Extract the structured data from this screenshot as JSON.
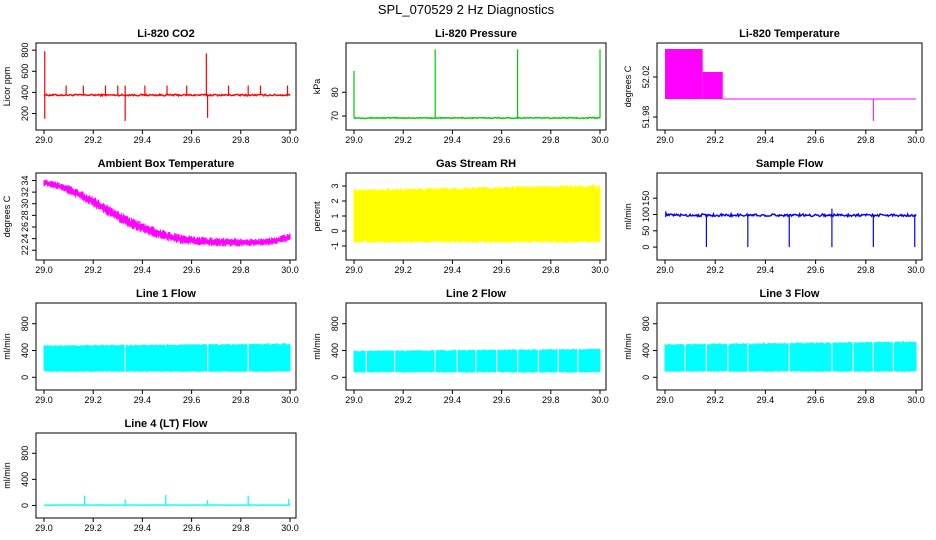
{
  "title": "SPL_070529  2 Hz Diagnostics",
  "chart_data": [
    {
      "type": "line",
      "title": "Li-820 CO2",
      "ylabel": "Licor ppm",
      "color": "#ff0000",
      "xlim": [
        29.0,
        30.0
      ],
      "ylim": [
        120,
        830
      ],
      "xticks": [
        "29.0",
        "29.2",
        "29.4",
        "29.6",
        "29.8",
        "30.0"
      ],
      "xtick_values": [
        29.0,
        29.2,
        29.4,
        29.6,
        29.8,
        30.0
      ],
      "yticks": [
        "200",
        "400",
        "600",
        "800"
      ],
      "ytick_values": [
        200,
        400,
        600,
        800
      ],
      "baseline": 375,
      "noise": 8,
      "spikes": [
        {
          "x": 29.003,
          "y": 790
        },
        {
          "x": 29.003,
          "y": 150
        },
        {
          "x": 29.09,
          "y": 465
        },
        {
          "x": 29.16,
          "y": 465
        },
        {
          "x": 29.25,
          "y": 465
        },
        {
          "x": 29.3,
          "y": 465
        },
        {
          "x": 29.33,
          "y": 465
        },
        {
          "x": 29.33,
          "y": 130
        },
        {
          "x": 29.41,
          "y": 465
        },
        {
          "x": 29.5,
          "y": 465
        },
        {
          "x": 29.58,
          "y": 465
        },
        {
          "x": 29.66,
          "y": 770
        },
        {
          "x": 29.665,
          "y": 160
        },
        {
          "x": 29.75,
          "y": 465
        },
        {
          "x": 29.83,
          "y": 465
        },
        {
          "x": 29.88,
          "y": 465
        },
        {
          "x": 29.99,
          "y": 465
        }
      ]
    },
    {
      "type": "line",
      "title": "Li-820 Pressure",
      "ylabel": "kPa",
      "color": "#00cc00",
      "xlim": [
        29.0,
        30.0
      ],
      "ylim": [
        67.5,
        99
      ],
      "xticks": [
        "29.0",
        "29.2",
        "29.4",
        "29.6",
        "29.8",
        "30.0"
      ],
      "xtick_values": [
        29.0,
        29.2,
        29.4,
        29.6,
        29.8,
        30.0
      ],
      "yticks": [
        "70",
        "80"
      ],
      "ytick_values": [
        70,
        80
      ],
      "baseline": 69.2,
      "noise": 0.2,
      "spikes": [
        {
          "x": 29.0,
          "y": 89
        },
        {
          "x": 29.33,
          "y": 98
        },
        {
          "x": 29.665,
          "y": 98
        },
        {
          "x": 30.0,
          "y": 98
        }
      ]
    },
    {
      "type": "line",
      "title": "Li-820 Temperature",
      "ylabel": "degrees C",
      "color": "#ff00ff",
      "xlim": [
        29.0,
        30.0
      ],
      "ylim": [
        51.975,
        52.05
      ],
      "xticks": [
        "29.0",
        "29.2",
        "29.4",
        "29.6",
        "29.8",
        "30.0"
      ],
      "xtick_values": [
        29.0,
        29.2,
        29.4,
        29.6,
        29.8,
        30.0
      ],
      "yticks": [
        "51.98",
        "52.02"
      ],
      "ytick_values": [
        51.98,
        52.02
      ],
      "bands": [
        {
          "x0": 29.0,
          "x1": 29.15,
          "y0": 51.998,
          "y1": 52.048
        },
        {
          "x0": 29.15,
          "x1": 29.23,
          "y0": 51.998,
          "y1": 52.025
        }
      ],
      "steady": {
        "x0": 29.23,
        "x1": 30.0,
        "y": 51.998
      },
      "spikes": [
        {
          "x": 29.83,
          "y": 51.976
        }
      ]
    },
    {
      "type": "area",
      "title": "Ambient Box Temperature",
      "ylabel": "degrees C",
      "color": "#ff00ff",
      "xlim": [
        29.0,
        30.0
      ],
      "ylim": [
        21.7,
        34.6
      ],
      "xticks": [
        "29.0",
        "29.2",
        "29.4",
        "29.6",
        "29.8",
        "30.0"
      ],
      "xtick_values": [
        29.0,
        29.2,
        29.4,
        29.6,
        29.8,
        30.0
      ],
      "yticks": [
        "22",
        "24",
        "26",
        "28",
        "30",
        "32",
        "34"
      ],
      "ytick_values": [
        22,
        24,
        26,
        28,
        30,
        32,
        34
      ],
      "x": [
        29.0,
        29.05,
        29.1,
        29.15,
        29.2,
        29.25,
        29.3,
        29.35,
        29.4,
        29.45,
        29.5,
        29.55,
        29.6,
        29.65,
        29.7,
        29.75,
        29.8,
        29.85,
        29.9,
        29.95,
        30.0
      ],
      "upper": [
        34.3,
        33.9,
        33.2,
        32.3,
        31.3,
        30.1,
        28.8,
        27.7,
        26.8,
        26.0,
        25.3,
        24.8,
        24.5,
        24.3,
        24.2,
        24.1,
        24.0,
        24.0,
        24.1,
        24.4,
        25.0
      ],
      "lower": [
        33.0,
        32.5,
        31.6,
        30.6,
        29.4,
        28.1,
        26.9,
        25.8,
        24.9,
        24.2,
        23.6,
        23.1,
        22.9,
        22.8,
        22.7,
        22.6,
        22.6,
        22.7,
        22.8,
        23.0,
        23.6
      ]
    },
    {
      "type": "area",
      "title": "Gas Stream RH",
      "ylabel": "percent",
      "color": "#ffff00",
      "xlim": [
        29.0,
        30.0
      ],
      "ylim": [
        -1.4,
        3.6
      ],
      "xticks": [
        "29.0",
        "29.2",
        "29.4",
        "29.6",
        "29.8",
        "30.0"
      ],
      "xtick_values": [
        29.0,
        29.2,
        29.4,
        29.6,
        29.8,
        30.0
      ],
      "yticks": [
        "-1",
        "0",
        "1",
        "2",
        "3"
      ],
      "ytick_values": [
        -1,
        0,
        1,
        2,
        3
      ],
      "x": [
        29.0,
        30.0
      ],
      "upper": [
        2.8,
        3.1
      ],
      "lower": [
        -0.8,
        -0.9
      ]
    },
    {
      "type": "line",
      "title": "Sample Flow",
      "ylabel": "ml/min",
      "color": "#0000ff",
      "xlim": [
        29.0,
        30.0
      ],
      "ylim": [
        -15,
        215
      ],
      "xticks": [
        "29.0",
        "29.2",
        "29.4",
        "29.6",
        "29.8",
        "30.0"
      ],
      "xtick_values": [
        29.0,
        29.2,
        29.4,
        29.6,
        29.8,
        30.0
      ],
      "yticks": [
        "0",
        "50",
        "100",
        "150"
      ],
      "ytick_values": [
        0,
        50,
        100,
        150
      ],
      "baseline": 98,
      "noise": 4,
      "spikes": [
        {
          "x": 29.003,
          "y": 110
        },
        {
          "x": 29.165,
          "y": 0
        },
        {
          "x": 29.33,
          "y": 0
        },
        {
          "x": 29.495,
          "y": 0
        },
        {
          "x": 29.665,
          "y": 0
        },
        {
          "x": 29.665,
          "y": 118
        },
        {
          "x": 29.83,
          "y": 0
        },
        {
          "x": 29.995,
          "y": 0
        }
      ]
    },
    {
      "type": "area",
      "title": "Line 1 Flow",
      "ylabel": "ml/min",
      "color": "#00ffff",
      "xlim": [
        29.0,
        30.0
      ],
      "ylim": [
        -70,
        1050
      ],
      "xticks": [
        "29.0",
        "29.2",
        "29.4",
        "29.6",
        "29.8",
        "30.0"
      ],
      "xtick_values": [
        29.0,
        29.2,
        29.4,
        29.6,
        29.8,
        30.0
      ],
      "yticks": [
        "0",
        "400",
        "800"
      ],
      "ytick_values": [
        0,
        400,
        800
      ],
      "x": [
        29.0,
        30.0
      ],
      "upper": [
        480,
        510
      ],
      "lower": [
        80,
        80
      ],
      "gaps": [
        29.33,
        29.665,
        29.83
      ]
    },
    {
      "type": "area",
      "title": "Line 2 Flow",
      "ylabel": "ml/min",
      "color": "#00ffff",
      "xlim": [
        29.0,
        30.0
      ],
      "ylim": [
        -70,
        1050
      ],
      "xticks": [
        "29.0",
        "29.2",
        "29.4",
        "29.6",
        "29.8",
        "30.0"
      ],
      "xtick_values": [
        29.0,
        29.2,
        29.4,
        29.6,
        29.8,
        30.0
      ],
      "yticks": [
        "0",
        "400",
        "800"
      ],
      "ytick_values": [
        0,
        400,
        800
      ],
      "x": [
        29.0,
        30.0
      ],
      "upper": [
        400,
        430
      ],
      "lower": [
        70,
        70
      ],
      "gaps": [
        29.05,
        29.165,
        29.33,
        29.42,
        29.495,
        29.58,
        29.665,
        29.75,
        29.83,
        29.91
      ]
    },
    {
      "type": "area",
      "title": "Line 3 Flow",
      "ylabel": "ml/min",
      "color": "#00ffff",
      "xlim": [
        29.0,
        30.0
      ],
      "ylim": [
        -70,
        1050
      ],
      "xticks": [
        "29.0",
        "29.2",
        "29.4",
        "29.6",
        "29.8",
        "30.0"
      ],
      "xtick_values": [
        29.0,
        29.2,
        29.4,
        29.6,
        29.8,
        30.0
      ],
      "yticks": [
        "0",
        "400",
        "800"
      ],
      "ytick_values": [
        0,
        400,
        800
      ],
      "x": [
        29.0,
        30.0
      ],
      "upper": [
        500,
        540
      ],
      "lower": [
        80,
        80
      ],
      "gaps": [
        29.08,
        29.165,
        29.25,
        29.33,
        29.495,
        29.665,
        29.75,
        29.83,
        29.91
      ]
    },
    {
      "type": "line",
      "title": "Line 4 (LT) Flow",
      "ylabel": "ml/min",
      "color": "#00ffff",
      "xlim": [
        29.0,
        30.0
      ],
      "ylim": [
        -70,
        1050
      ],
      "xticks": [
        "29.0",
        "29.2",
        "29.4",
        "29.6",
        "29.8",
        "30.0"
      ],
      "xtick_values": [
        29.0,
        29.2,
        29.4,
        29.6,
        29.8,
        30.0
      ],
      "yticks": [
        "0",
        "400",
        "800"
      ],
      "ytick_values": [
        0,
        400,
        800
      ],
      "baseline": 5,
      "noise": 2,
      "spikes": [
        {
          "x": 29.165,
          "y": 150
        },
        {
          "x": 29.33,
          "y": 90
        },
        {
          "x": 29.495,
          "y": 160
        },
        {
          "x": 29.665,
          "y": 80
        },
        {
          "x": 29.83,
          "y": 150
        },
        {
          "x": 29.995,
          "y": 100
        }
      ]
    }
  ]
}
